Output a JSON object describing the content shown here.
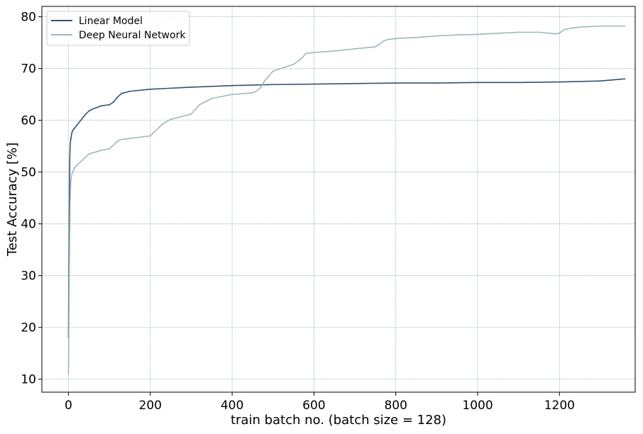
{
  "chart_data": {
    "type": "line",
    "title": "",
    "xlabel": "train batch no. (batch size = 128)",
    "ylabel": "Test Accuracy [%]",
    "xlim": [
      -65,
      1385
    ],
    "ylim": [
      7.5,
      82
    ],
    "xticks": [
      0,
      200,
      400,
      600,
      800,
      1000,
      1200
    ],
    "yticks": [
      10,
      20,
      30,
      40,
      50,
      60,
      70,
      80
    ],
    "grid": true,
    "legend_position": "top-left",
    "colors": {
      "linear": "#34536e",
      "dnn": "#9fb7bc",
      "grid": "#8aa6a8",
      "axes": "#000000"
    },
    "series": [
      {
        "name": "Linear Model",
        "color": "#34536e",
        "x": [
          0,
          1,
          2,
          3,
          4,
          5,
          6,
          8,
          10,
          15,
          20,
          30,
          40,
          50,
          60,
          80,
          100,
          110,
          120,
          130,
          150,
          200,
          250,
          300,
          400,
          500,
          600,
          700,
          800,
          900,
          1000,
          1100,
          1200,
          1300,
          1360
        ],
        "y": [
          18,
          30,
          42,
          52,
          55,
          56,
          56.5,
          57.5,
          58,
          58.5,
          59,
          60,
          61,
          61.8,
          62.2,
          62.8,
          63,
          63.5,
          64.5,
          65.2,
          65.6,
          66,
          66.2,
          66.4,
          66.7,
          66.9,
          67,
          67.1,
          67.2,
          67.2,
          67.3,
          67.3,
          67.4,
          67.6,
          68
        ]
      },
      {
        "name": "Deep Neural Network",
        "color": "#9fb7bc",
        "x": [
          0,
          1,
          2,
          3,
          4,
          5,
          6,
          8,
          10,
          15,
          20,
          30,
          50,
          80,
          100,
          110,
          120,
          130,
          150,
          180,
          200,
          210,
          220,
          230,
          250,
          300,
          320,
          350,
          400,
          450,
          460,
          470,
          480,
          500,
          550,
          570,
          580,
          600,
          650,
          700,
          750,
          760,
          770,
          780,
          800,
          850,
          900,
          950,
          1000,
          1050,
          1100,
          1150,
          1190,
          1200,
          1210,
          1230,
          1250,
          1300,
          1360
        ],
        "y": [
          11,
          20,
          30,
          38,
          44,
          47,
          48.5,
          49.5,
          50,
          50.8,
          51.3,
          52,
          53.5,
          54.2,
          54.5,
          55.2,
          56,
          56.3,
          56.5,
          56.8,
          57,
          57.8,
          58.5,
          59.3,
          60.2,
          61.2,
          63,
          64.2,
          65,
          65.3,
          65.7,
          66.3,
          67.7,
          69.5,
          70.8,
          72,
          72.9,
          73.1,
          73.4,
          73.8,
          74.2,
          74.7,
          75.3,
          75.6,
          75.8,
          76,
          76.3,
          76.5,
          76.6,
          76.8,
          77,
          77,
          76.7,
          76.8,
          77.5,
          77.8,
          78,
          78.2,
          78.2
        ]
      }
    ]
  }
}
